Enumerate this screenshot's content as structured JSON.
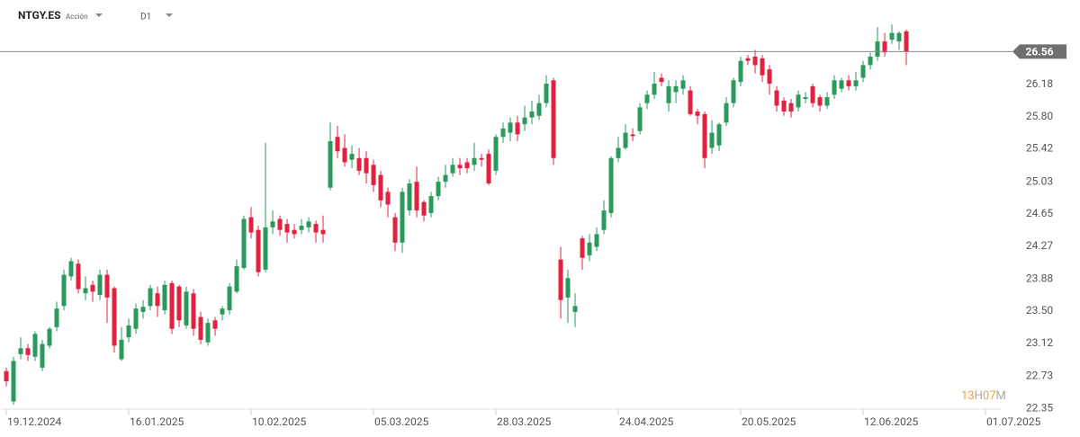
{
  "header": {
    "symbol": "NTGY.ES",
    "instrument_type": "Acción",
    "timeframe": "D1"
  },
  "countdown": {
    "hours": "13",
    "hours_unit": "H",
    "minutes": "07",
    "minutes_unit": "M"
  },
  "chart_data": {
    "type": "candlestick",
    "up_color": "#2a9a5c",
    "down_color": "#e3213f",
    "last_price": 26.56,
    "grid": false,
    "xlim": [
      -0.875,
      138.125
    ],
    "xticks": [
      {
        "value": 0,
        "label": "19.12.2024"
      },
      {
        "value": 17,
        "label": "16.01.2025"
      },
      {
        "value": 34,
        "label": "10.02.2025"
      },
      {
        "value": 51,
        "label": "05.03.2025"
      },
      {
        "value": 68,
        "label": "28.03.2025"
      },
      {
        "value": 85,
        "label": "24.04.2025"
      },
      {
        "value": 102,
        "label": "20.05.2025"
      },
      {
        "value": 119,
        "label": "12.06.2025"
      },
      {
        "value": 136,
        "label": "01.07.2025"
      }
    ],
    "ylim": [
      22.33,
      27.17
    ],
    "yticks": [
      22.35,
      22.73,
      23.12,
      {
        "value": 23.5,
        "label": "23.50"
      },
      23.88,
      24.27,
      24.65,
      25.03,
      25.42,
      {
        "value": 25.8,
        "label": "25.80"
      },
      26.18
    ],
    "open": [
      22.78,
      22.42,
      22.98,
      23.05,
      22.95,
      22.82,
      23.08,
      23.3,
      23.55,
      23.9,
      24.05,
      23.7,
      23.8,
      23.68,
      23.92,
      23.76,
      22.92,
      23.18,
      23.28,
      23.48,
      23.55,
      23.7,
      23.5,
      23.82,
      23.78,
      23.32,
      23.7,
      23.42,
      23.12,
      23.38,
      23.45,
      23.5,
      23.72,
      24.0,
      24.6,
      24.45,
      23.98,
      24.48,
      24.58,
      24.52,
      24.45,
      24.45,
      24.48,
      24.52,
      24.45,
      24.95,
      25.55,
      25.42,
      25.28,
      25.3,
      25.3,
      25.22,
      25.1,
      24.9,
      24.6,
      24.3,
      24.68,
      25.02,
      24.78,
      24.65,
      24.85,
      25.02,
      25.12,
      25.22,
      25.25,
      25.22,
      25.3,
      25.35,
      25.15,
      25.55,
      25.6,
      25.72,
      25.7,
      25.78,
      25.8,
      25.95,
      26.22,
      24.1,
      23.65,
      23.48,
      24.35,
      24.15,
      24.25,
      24.45,
      24.65,
      25.3,
      25.42,
      25.58,
      25.62,
      25.95,
      26.05,
      26.25,
      25.95,
      26.08,
      26.12,
      26.1,
      25.85,
      25.82,
      25.42,
      25.45,
      25.72,
      25.95,
      26.2,
      26.48,
      26.5,
      26.48,
      26.35,
      26.1,
      25.98,
      25.95,
      25.9,
      26.0,
      26.15,
      26.02,
      25.92,
      26.05,
      26.12,
      26.22,
      26.15,
      26.25,
      26.4,
      26.5,
      26.68,
      26.7,
      26.68,
      26.8
    ],
    "high": [
      22.82,
      22.95,
      23.18,
      23.1,
      23.25,
      23.15,
      23.3,
      23.6,
      23.98,
      24.12,
      24.1,
      23.9,
      23.85,
      23.98,
      23.98,
      23.78,
      23.3,
      23.4,
      23.58,
      23.62,
      23.8,
      23.78,
      23.85,
      23.85,
      23.8,
      23.78,
      23.75,
      23.48,
      23.4,
      23.42,
      23.55,
      23.82,
      24.1,
      24.62,
      24.72,
      24.5,
      25.48,
      24.68,
      24.62,
      24.58,
      24.52,
      24.58,
      24.6,
      24.56,
      24.62,
      25.72,
      25.68,
      25.58,
      25.45,
      25.42,
      25.38,
      25.28,
      25.15,
      24.95,
      24.65,
      24.95,
      25.05,
      25.2,
      24.8,
      24.9,
      25.08,
      25.22,
      25.3,
      25.3,
      25.3,
      25.48,
      25.35,
      25.4,
      25.58,
      25.72,
      25.78,
      25.8,
      25.92,
      25.98,
      26.05,
      26.28,
      26.25,
      24.25,
      23.98,
      23.7,
      24.38,
      24.4,
      24.48,
      24.8,
      25.32,
      25.55,
      25.7,
      25.65,
      25.95,
      26.1,
      26.32,
      26.3,
      26.22,
      26.22,
      26.28,
      26.15,
      25.88,
      25.85,
      25.75,
      25.72,
      26.02,
      26.25,
      26.5,
      26.52,
      26.58,
      26.52,
      26.4,
      26.15,
      26.02,
      26.0,
      26.1,
      26.08,
      26.18,
      26.05,
      26.08,
      26.28,
      26.25,
      26.28,
      26.32,
      26.45,
      26.55,
      26.85,
      26.78,
      26.88,
      26.8,
      26.82
    ],
    "low": [
      22.6,
      22.38,
      22.92,
      22.9,
      22.9,
      22.78,
      23.05,
      23.25,
      23.5,
      23.85,
      23.7,
      23.62,
      23.6,
      23.62,
      23.35,
      23.0,
      22.9,
      23.12,
      23.22,
      23.4,
      23.5,
      23.42,
      23.45,
      23.22,
      23.3,
      23.28,
      23.2,
      23.1,
      23.08,
      23.2,
      23.38,
      23.45,
      23.7,
      23.98,
      24.35,
      23.9,
      23.95,
      24.4,
      24.38,
      24.3,
      24.35,
      24.4,
      24.42,
      24.3,
      24.3,
      24.92,
      25.3,
      25.2,
      25.18,
      25.1,
      25.0,
      24.9,
      24.72,
      24.6,
      24.2,
      24.18,
      24.62,
      24.6,
      24.55,
      24.6,
      24.8,
      24.95,
      25.08,
      25.1,
      25.12,
      25.15,
      25.2,
      24.98,
      25.1,
      25.48,
      25.5,
      25.5,
      25.62,
      25.7,
      25.75,
      25.9,
      25.22,
      23.4,
      23.35,
      23.3,
      23.98,
      24.08,
      24.2,
      24.4,
      24.6,
      25.25,
      25.4,
      25.5,
      25.58,
      25.88,
      26.0,
      26.15,
      25.85,
      25.95,
      26.05,
      25.8,
      25.7,
      25.18,
      25.35,
      25.38,
      25.68,
      25.9,
      26.15,
      26.4,
      26.3,
      26.2,
      26.05,
      25.85,
      25.8,
      25.78,
      25.85,
      25.95,
      25.9,
      25.85,
      25.88,
      26.0,
      26.08,
      26.1,
      26.1,
      26.2,
      26.35,
      26.45,
      26.5,
      26.65,
      26.58,
      26.4
    ],
    "close": [
      22.66,
      22.9,
      23.05,
      22.97,
      23.22,
      23.1,
      23.28,
      23.52,
      23.92,
      24.08,
      23.75,
      23.76,
      23.72,
      23.92,
      23.65,
      23.08,
      23.15,
      23.32,
      23.52,
      23.54,
      23.76,
      23.55,
      23.8,
      23.28,
      23.38,
      23.72,
      23.28,
      23.15,
      23.35,
      23.28,
      23.52,
      23.78,
      24.02,
      24.58,
      24.42,
      23.95,
      24.48,
      24.55,
      24.45,
      24.42,
      24.4,
      24.5,
      24.55,
      24.42,
      24.4,
      25.5,
      25.38,
      25.25,
      25.35,
      25.15,
      25.12,
      24.98,
      24.8,
      24.75,
      24.3,
      24.9,
      25.0,
      24.68,
      24.62,
      24.85,
      25.02,
      25.1,
      25.22,
      25.18,
      25.18,
      25.3,
      25.28,
      25.0,
      25.55,
      25.65,
      25.72,
      25.58,
      25.78,
      25.85,
      25.95,
      26.18,
      25.3,
      23.62,
      23.88,
      23.55,
      24.12,
      24.3,
      24.4,
      24.68,
      25.3,
      25.42,
      25.6,
      25.56,
      25.9,
      26.05,
      26.18,
      26.2,
      26.15,
      26.15,
      26.22,
      25.82,
      25.8,
      25.3,
      25.6,
      25.7,
      25.95,
      26.22,
      26.45,
      26.45,
      26.4,
      26.28,
      26.18,
      25.92,
      25.85,
      25.85,
      26.05,
      26.02,
      25.95,
      25.92,
      26.02,
      26.22,
      26.22,
      26.15,
      26.22,
      26.4,
      26.5,
      26.68,
      26.55,
      26.78,
      26.78,
      26.56
    ]
  }
}
